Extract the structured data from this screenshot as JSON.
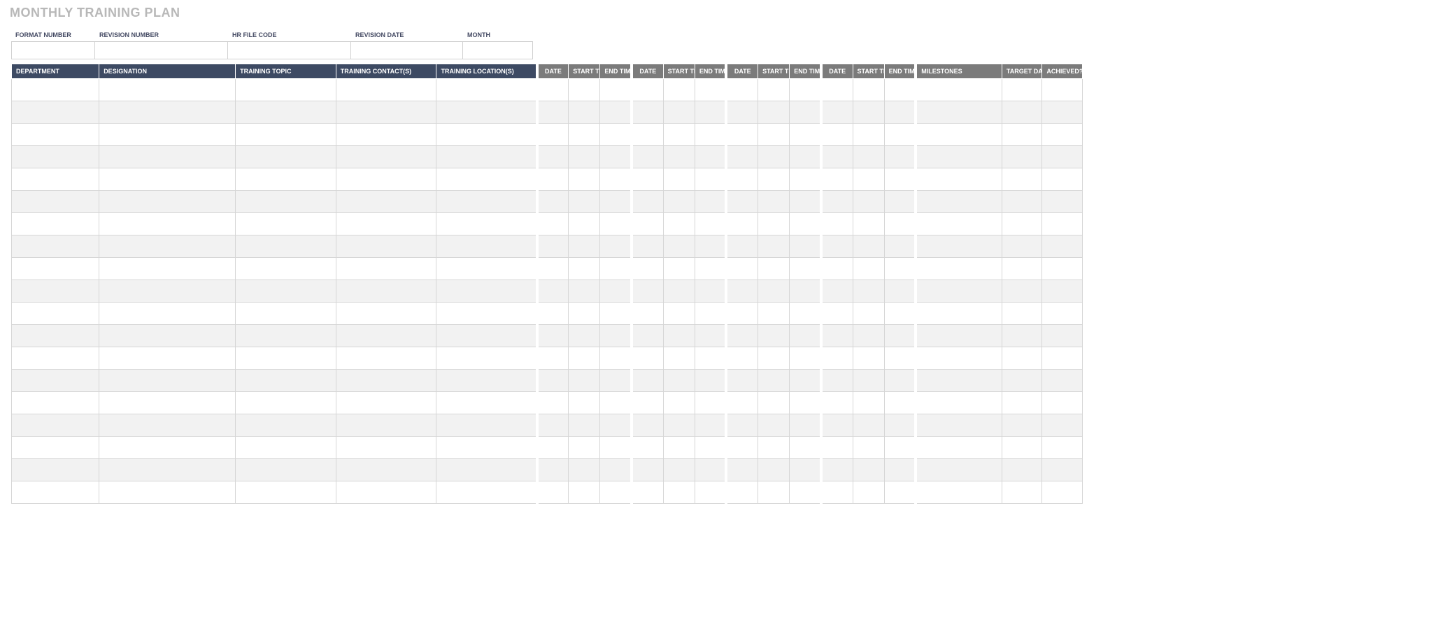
{
  "title": "MONTHLY TRAINING PLAN",
  "meta": {
    "labels": [
      "FORMAT NUMBER",
      "REVISION NUMBER",
      "HR FILE CODE",
      "REVISION DATE",
      "MONTH"
    ],
    "values": [
      "",
      "",
      "",
      "",
      ""
    ]
  },
  "table": {
    "columns_blue": [
      "DEPARTMENT",
      "DESIGNATION",
      "TRAINING TOPIC",
      "TRAINING CONTACT(S)",
      "TRAINING LOCATION(S)"
    ],
    "session_group": [
      "DATE",
      "START TIME",
      "END TIME"
    ],
    "session_group_count": 4,
    "columns_grey_tail": [
      "MILESTONES",
      "TARGET DATE",
      "ACHIEVED? Y/N"
    ],
    "row_count": 19,
    "colors": {
      "header_blue_bg": "#3d4a63",
      "header_grey_bg": "#7b7b7b",
      "header_fg": "#ffffff",
      "row_alt_bg": "#f2f2f2",
      "row_bg": "#ffffff",
      "border": "#d6d6d6",
      "title_color": "#b8b8b8"
    },
    "fonts": {
      "header_size_pt": 7,
      "title_size_pt": 14,
      "title_weight": "bold",
      "header_weight": "bold"
    }
  }
}
